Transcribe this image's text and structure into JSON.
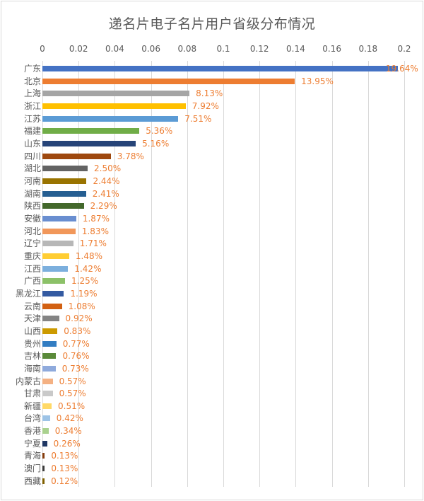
{
  "chart_data": {
    "type": "bar",
    "orientation": "horizontal",
    "title": "递名片电子名片用户省级分布情况",
    "xlabel": "",
    "ylabel": "",
    "xlim": [
      0,
      0.2
    ],
    "x_ticks": [
      "0",
      "0.02",
      "0.04",
      "0.06",
      "0.08",
      "0.1",
      "0.12",
      "0.14",
      "0.16",
      "0.18",
      "0.2"
    ],
    "axis_position": "top",
    "grid": true,
    "legend": null,
    "categories": [
      "广东",
      "北京",
      "上海",
      "浙江",
      "江苏",
      "福建",
      "山东",
      "四川",
      "湖北",
      "河南",
      "湖南",
      "陕西",
      "安徽",
      "河北",
      "辽宁",
      "重庆",
      "江西",
      "广西",
      "黑龙江",
      "云南",
      "天津",
      "山西",
      "贵州",
      "吉林",
      "海南",
      "内蒙古",
      "甘肃",
      "新疆",
      "台湾",
      "香港",
      "宁夏",
      "青海",
      "澳门",
      "西藏"
    ],
    "values": [
      0.1964,
      0.1395,
      0.0813,
      0.0792,
      0.0751,
      0.0536,
      0.0516,
      0.0378,
      0.025,
      0.0244,
      0.0241,
      0.0229,
      0.0187,
      0.0183,
      0.0171,
      0.0148,
      0.0142,
      0.0125,
      0.0119,
      0.0108,
      0.0092,
      0.0083,
      0.0077,
      0.0076,
      0.0073,
      0.0057,
      0.0057,
      0.0051,
      0.0042,
      0.0034,
      0.0026,
      0.0013,
      0.0013,
      0.0012
    ],
    "data_labels": [
      "19.64%",
      "13.95%",
      "8.13%",
      "7.92%",
      "7.51%",
      "5.36%",
      "5.16%",
      "3.78%",
      "2.50%",
      "2.44%",
      "2.41%",
      "2.29%",
      "1.87%",
      "1.83%",
      "1.71%",
      "1.48%",
      "1.42%",
      "1.25%",
      "1.19%",
      "1.08%",
      "0.92%",
      "0.83%",
      "0.77%",
      "0.76%",
      "0.73%",
      "0.57%",
      "0.57%",
      "0.51%",
      "0.42%",
      "0.34%",
      "0.26%",
      "0.13%",
      "0.13%",
      "0.12%"
    ],
    "colors": [
      "#4472C4",
      "#ED7D31",
      "#A5A5A5",
      "#FFC000",
      "#5B9BD5",
      "#70AD47",
      "#264478",
      "#9E480E",
      "#636363",
      "#997300",
      "#255E91",
      "#43682B",
      "#698ED0",
      "#F1975A",
      "#B7B7B7",
      "#FFCD33",
      "#7CAFDD",
      "#8CC168",
      "#335AA1",
      "#D26012",
      "#848484",
      "#CC9A00",
      "#327DC2",
      "#5A8A39",
      "#8FAADC",
      "#F4B183",
      "#C9C9C9",
      "#FFD966",
      "#9DC3E6",
      "#A9D18E",
      "#203864",
      "#843C0C",
      "#3B3B3B",
      "#7F6000"
    ],
    "label_color": "#ED7D31"
  }
}
